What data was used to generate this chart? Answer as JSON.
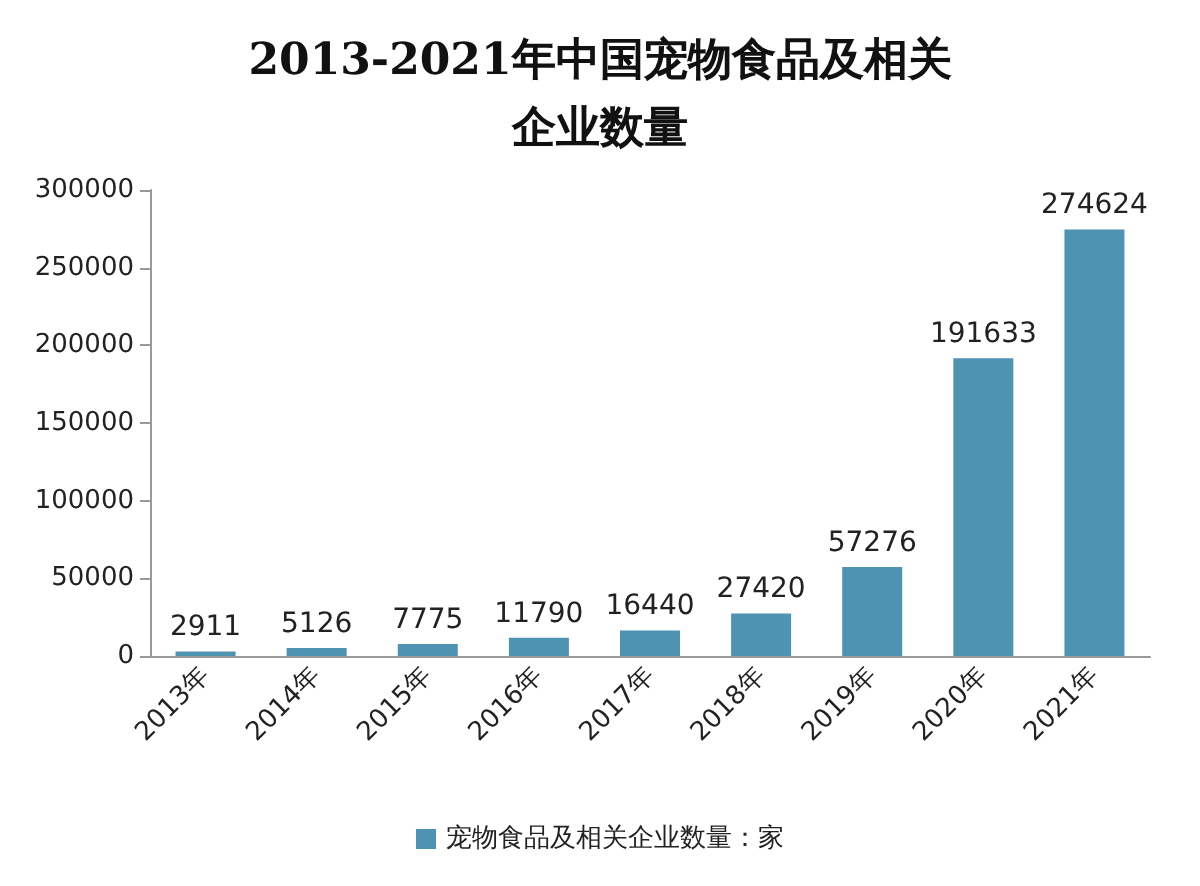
{
  "chart_data": {
    "type": "bar",
    "title": "2013-2021年中国宠物食品及相关企业数量",
    "categories": [
      "2013年",
      "2014年",
      "2015年",
      "2016年",
      "2017年",
      "2018年",
      "2019年",
      "2020年",
      "2021年"
    ],
    "series": [
      {
        "name": "宠物食品及相关企业数量：家",
        "color": "#4f93b3",
        "values": [
          2911,
          5126,
          7775,
          11790,
          16440,
          27420,
          57276,
          191633,
          274624
        ]
      }
    ],
    "ylim": [
      0,
      300000
    ],
    "yticks": [
      0,
      50000,
      100000,
      150000,
      200000,
      250000,
      300000
    ],
    "data_labels": true,
    "grid": false,
    "legend": "bottom"
  }
}
